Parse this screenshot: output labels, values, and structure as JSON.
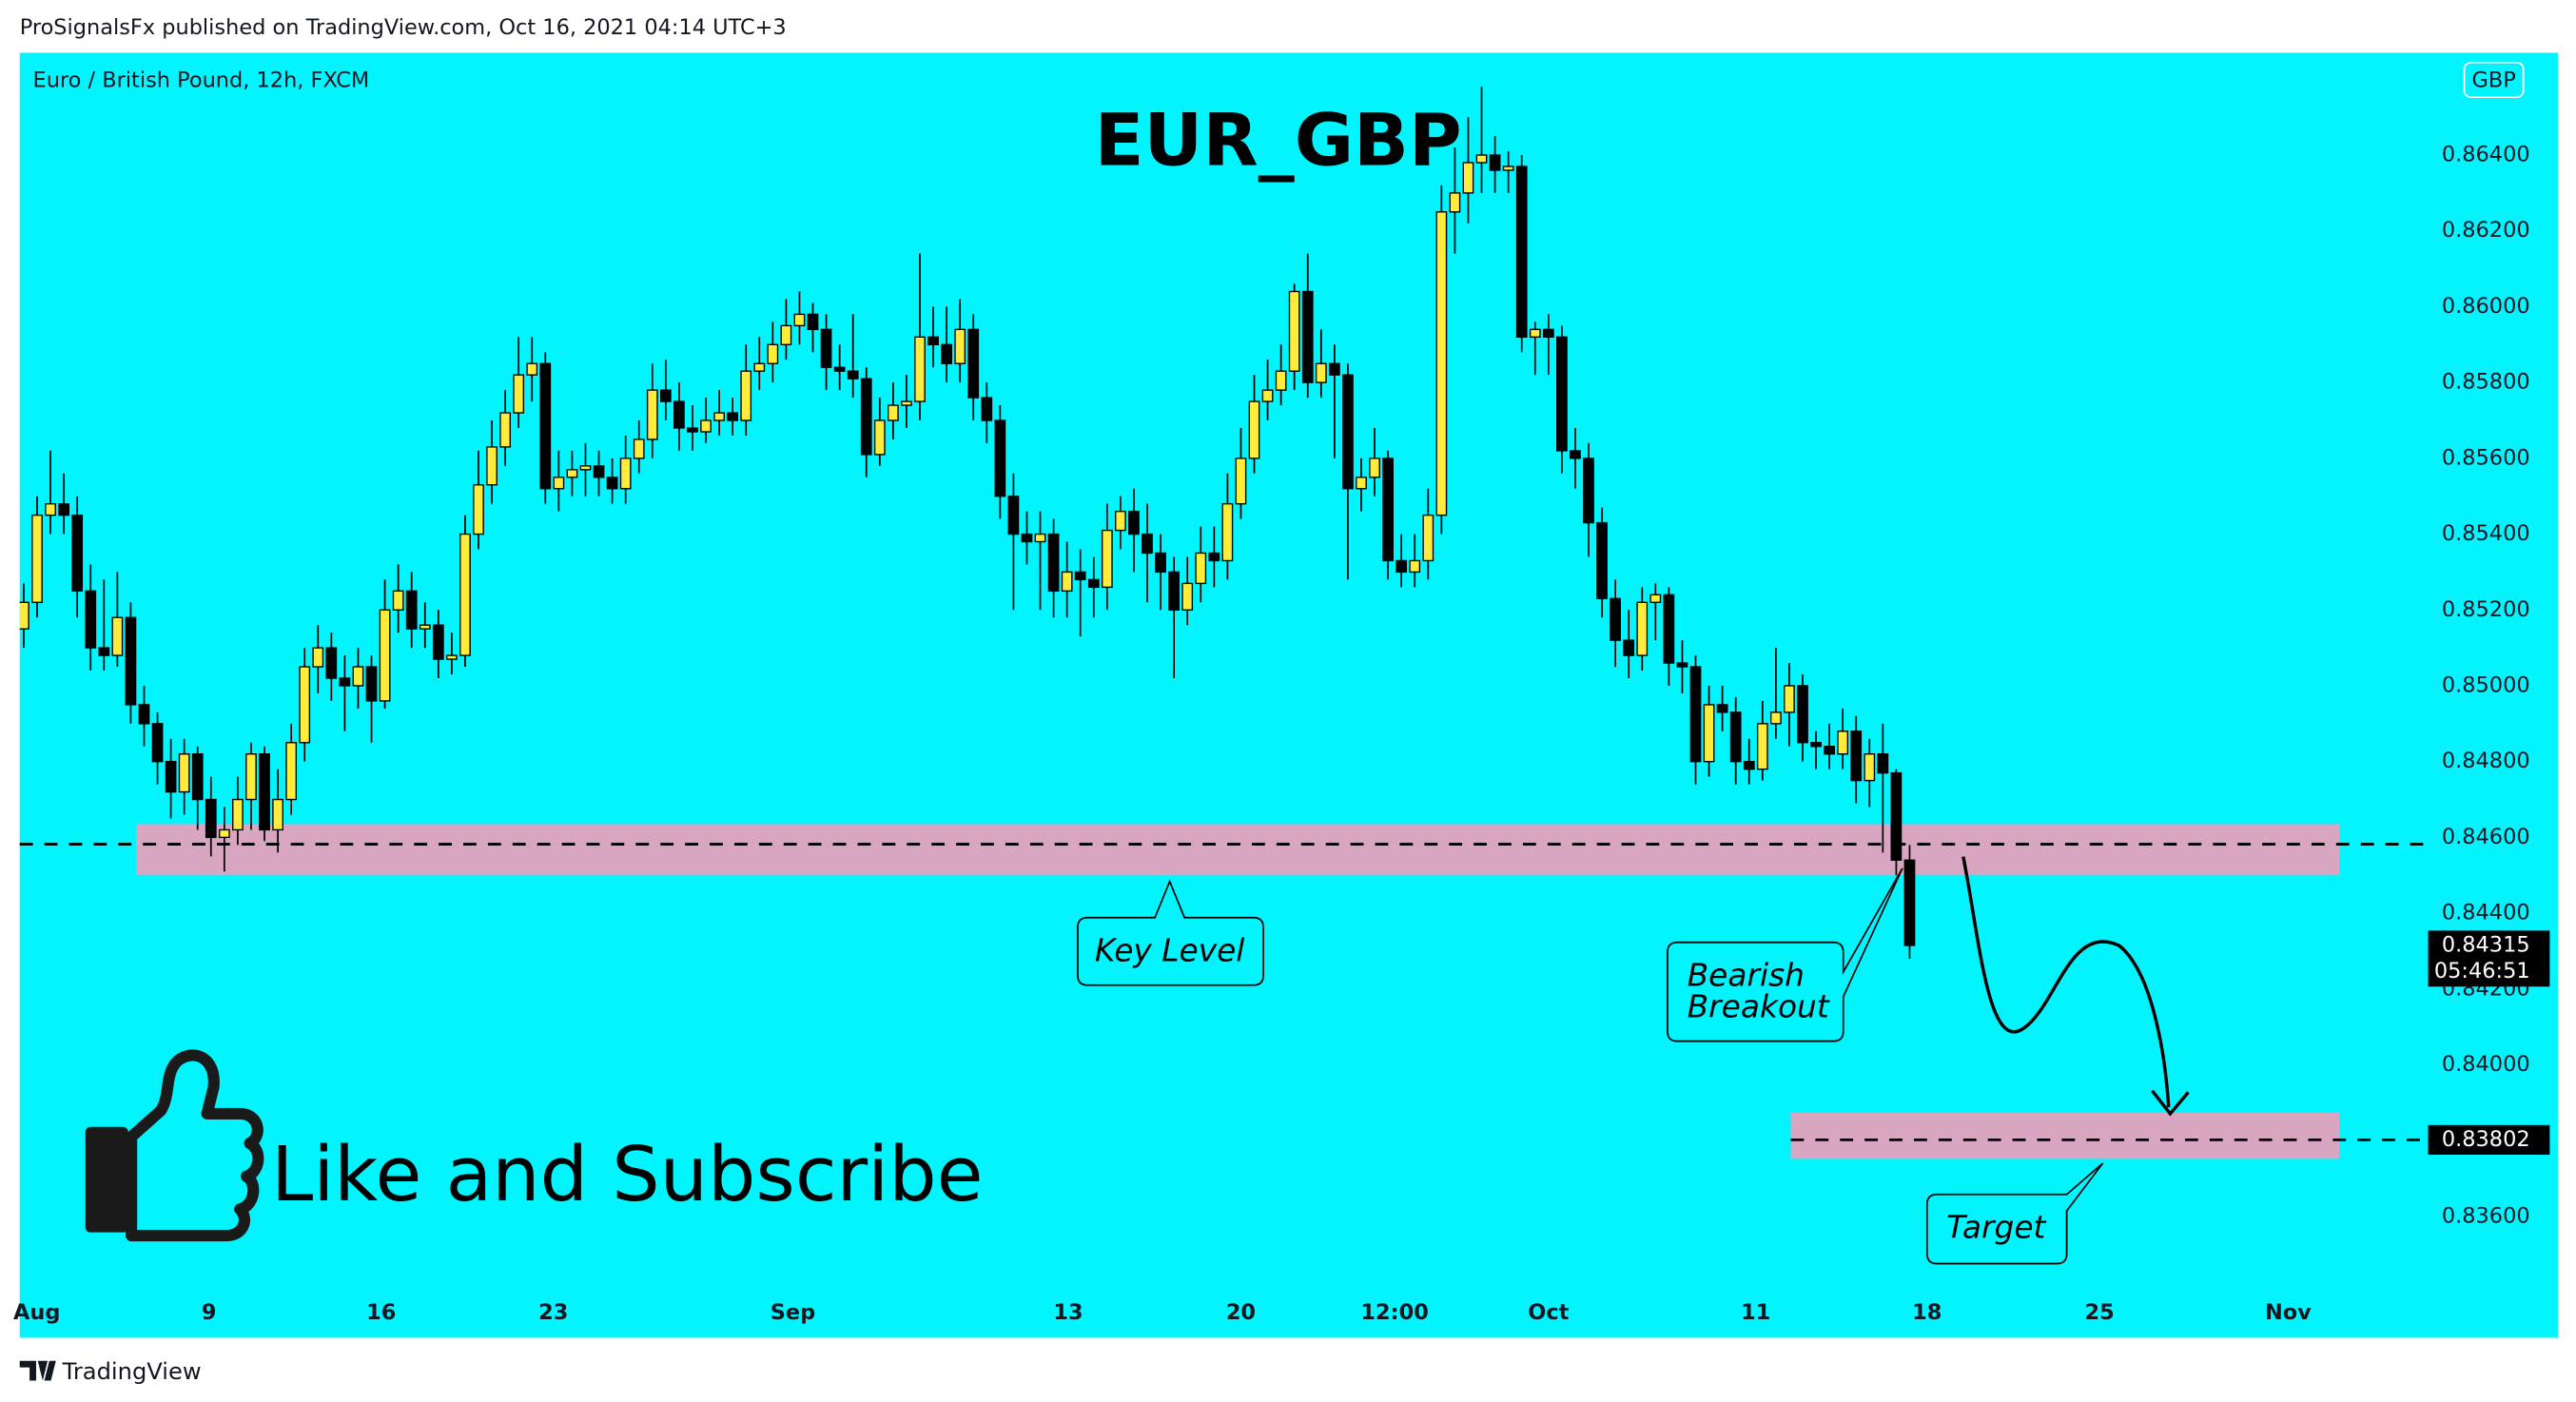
{
  "header": {
    "published": "ProSignalsFx published on TradingView.com, Oct 16, 2021 04:14 UTC+3"
  },
  "footer": {
    "brand": "TradingView"
  },
  "chart_data": {
    "type": "candlestick",
    "title": "EUR_GBP",
    "subtitle": "Euro / British Pound, 12h, FXCM",
    "currency": "GBP",
    "call_to_action": "Like and Subscribe",
    "annotations": {
      "key_level": "Key Level",
      "breakout": [
        "Bearish",
        "Breakout"
      ],
      "target": "Target"
    },
    "up_color": "#ffeb3b",
    "down_color": "#000000",
    "background": "#00f5ff",
    "zone_color": "#d8a6c0",
    "ylim": [
      0.8328,
      0.8667
    ],
    "yticks": [
      {
        "value": 0.836,
        "label": "0.83600"
      },
      {
        "value": 0.838,
        "label": "0.83800"
      },
      {
        "value": 0.84,
        "label": "0.84000"
      },
      {
        "value": 0.842,
        "label": "0.84200"
      },
      {
        "value": 0.844,
        "label": "0.84400"
      },
      {
        "value": 0.846,
        "label": "0.84600"
      },
      {
        "value": 0.848,
        "label": "0.84800"
      },
      {
        "value": 0.85,
        "label": "0.85000"
      },
      {
        "value": 0.852,
        "label": "0.85200"
      },
      {
        "value": 0.854,
        "label": "0.85400"
      },
      {
        "value": 0.856,
        "label": "0.85600"
      },
      {
        "value": 0.858,
        "label": "0.85800"
      },
      {
        "value": 0.86,
        "label": "0.86000"
      },
      {
        "value": 0.862,
        "label": "0.86200"
      },
      {
        "value": 0.864,
        "label": "0.86400"
      }
    ],
    "xlim": [
      -0.3,
      179.4
    ],
    "xticks": [
      {
        "value": 0.98,
        "label": "Aug"
      },
      {
        "value": 13.85,
        "label": "9"
      },
      {
        "value": 26.73,
        "label": "16"
      },
      {
        "value": 39.6,
        "label": "23"
      },
      {
        "value": 57.5,
        "label": "Sep"
      },
      {
        "value": 78.1,
        "label": "13"
      },
      {
        "value": 91.0,
        "label": "20"
      },
      {
        "value": 102.5,
        "label": "12:00"
      },
      {
        "value": 114.0,
        "label": "Oct"
      },
      {
        "value": 129.5,
        "label": "11"
      },
      {
        "value": 142.3,
        "label": "18"
      },
      {
        "value": 155.2,
        "label": "25"
      },
      {
        "value": 169.3,
        "label": "Nov"
      }
    ],
    "zones": [
      {
        "low": 0.845,
        "high": 0.84635
      },
      {
        "low": 0.83752,
        "high": 0.83874
      }
    ],
    "levels": [
      0.84582,
      0.83802
    ],
    "price_labels": [
      {
        "value": 0.84315,
        "label": "0.84315",
        "sub": "05:46:51"
      },
      {
        "value": 0.83802,
        "label": "0.83802"
      }
    ],
    "ohlc": [
      [
        0.8515,
        0.8527,
        0.851,
        0.8522
      ],
      [
        0.8522,
        0.855,
        0.8518,
        0.8545
      ],
      [
        0.8545,
        0.8562,
        0.854,
        0.8548
      ],
      [
        0.8548,
        0.8556,
        0.854,
        0.8545
      ],
      [
        0.8545,
        0.855,
        0.8518,
        0.8525
      ],
      [
        0.8525,
        0.8532,
        0.8504,
        0.851
      ],
      [
        0.851,
        0.8528,
        0.8504,
        0.8508
      ],
      [
        0.8508,
        0.853,
        0.8505,
        0.8518
      ],
      [
        0.8518,
        0.8522,
        0.849,
        0.8495
      ],
      [
        0.8495,
        0.85,
        0.8484,
        0.849
      ],
      [
        0.849,
        0.8493,
        0.8474,
        0.848
      ],
      [
        0.848,
        0.8486,
        0.8465,
        0.8472
      ],
      [
        0.8472,
        0.8486,
        0.8466,
        0.8482
      ],
      [
        0.8482,
        0.8484,
        0.8462,
        0.847
      ],
      [
        0.847,
        0.8476,
        0.8455,
        0.846
      ],
      [
        0.846,
        0.8468,
        0.8451,
        0.8462
      ],
      [
        0.8462,
        0.8476,
        0.8458,
        0.847
      ],
      [
        0.847,
        0.8485,
        0.8462,
        0.8482
      ],
      [
        0.8482,
        0.8484,
        0.8459,
        0.8462
      ],
      [
        0.8462,
        0.8478,
        0.8456,
        0.847
      ],
      [
        0.847,
        0.849,
        0.8466,
        0.8485
      ],
      [
        0.8485,
        0.851,
        0.848,
        0.8505
      ],
      [
        0.8505,
        0.8516,
        0.8498,
        0.851
      ],
      [
        0.851,
        0.8514,
        0.8496,
        0.8502
      ],
      [
        0.8502,
        0.8508,
        0.8488,
        0.85
      ],
      [
        0.85,
        0.851,
        0.8494,
        0.8505
      ],
      [
        0.8505,
        0.8508,
        0.8485,
        0.8496
      ],
      [
        0.8496,
        0.8528,
        0.8494,
        0.852
      ],
      [
        0.852,
        0.8532,
        0.8514,
        0.8525
      ],
      [
        0.8525,
        0.853,
        0.851,
        0.8515
      ],
      [
        0.8515,
        0.8522,
        0.851,
        0.8516
      ],
      [
        0.8516,
        0.852,
        0.8502,
        0.8507
      ],
      [
        0.8507,
        0.8514,
        0.8503,
        0.8508
      ],
      [
        0.8508,
        0.8545,
        0.8505,
        0.854
      ],
      [
        0.854,
        0.8562,
        0.8536,
        0.8553
      ],
      [
        0.8553,
        0.857,
        0.8548,
        0.8563
      ],
      [
        0.8563,
        0.8578,
        0.8558,
        0.8572
      ],
      [
        0.8572,
        0.8592,
        0.8568,
        0.8582
      ],
      [
        0.8582,
        0.8592,
        0.8575,
        0.8585
      ],
      [
        0.8585,
        0.8588,
        0.8548,
        0.8552
      ],
      [
        0.8552,
        0.8562,
        0.8546,
        0.8555
      ],
      [
        0.8555,
        0.8562,
        0.855,
        0.8557
      ],
      [
        0.8557,
        0.8564,
        0.855,
        0.8558
      ],
      [
        0.8558,
        0.8562,
        0.855,
        0.8555
      ],
      [
        0.8555,
        0.856,
        0.8548,
        0.8552
      ],
      [
        0.8552,
        0.8566,
        0.8548,
        0.856
      ],
      [
        0.856,
        0.857,
        0.8556,
        0.8565
      ],
      [
        0.8565,
        0.8585,
        0.856,
        0.8578
      ],
      [
        0.8578,
        0.8586,
        0.857,
        0.8575
      ],
      [
        0.8575,
        0.858,
        0.8562,
        0.8568
      ],
      [
        0.8568,
        0.8574,
        0.8562,
        0.8567
      ],
      [
        0.8567,
        0.8576,
        0.8564,
        0.857
      ],
      [
        0.857,
        0.8578,
        0.8566,
        0.8572
      ],
      [
        0.8572,
        0.8576,
        0.8566,
        0.857
      ],
      [
        0.857,
        0.859,
        0.8566,
        0.8583
      ],
      [
        0.8583,
        0.8592,
        0.8578,
        0.8585
      ],
      [
        0.8585,
        0.8596,
        0.858,
        0.859
      ],
      [
        0.859,
        0.8602,
        0.8586,
        0.8595
      ],
      [
        0.8595,
        0.8604,
        0.859,
        0.8598
      ],
      [
        0.8598,
        0.8601,
        0.8588,
        0.8594
      ],
      [
        0.8594,
        0.8598,
        0.8578,
        0.8584
      ],
      [
        0.8584,
        0.859,
        0.8578,
        0.8583
      ],
      [
        0.8583,
        0.8598,
        0.8576,
        0.8581
      ],
      [
        0.8581,
        0.8584,
        0.8555,
        0.8561
      ],
      [
        0.8561,
        0.8576,
        0.8558,
        0.857
      ],
      [
        0.857,
        0.858,
        0.8565,
        0.8574
      ],
      [
        0.8574,
        0.8582,
        0.8568,
        0.8575
      ],
      [
        0.8575,
        0.8614,
        0.857,
        0.8592
      ],
      [
        0.8592,
        0.86,
        0.8584,
        0.859
      ],
      [
        0.859,
        0.86,
        0.858,
        0.8585
      ],
      [
        0.8585,
        0.8602,
        0.858,
        0.8594
      ],
      [
        0.8594,
        0.8598,
        0.857,
        0.8576
      ],
      [
        0.8576,
        0.858,
        0.8564,
        0.857
      ],
      [
        0.857,
        0.8574,
        0.8544,
        0.855
      ],
      [
        0.855,
        0.8556,
        0.852,
        0.854
      ],
      [
        0.854,
        0.8546,
        0.8532,
        0.8538
      ],
      [
        0.8538,
        0.8546,
        0.852,
        0.854
      ],
      [
        0.854,
        0.8544,
        0.8518,
        0.8525
      ],
      [
        0.8525,
        0.8538,
        0.8518,
        0.853
      ],
      [
        0.853,
        0.8536,
        0.8513,
        0.8528
      ],
      [
        0.8528,
        0.8534,
        0.8518,
        0.8526
      ],
      [
        0.8526,
        0.8548,
        0.852,
        0.8541
      ],
      [
        0.8541,
        0.855,
        0.8536,
        0.8546
      ],
      [
        0.8546,
        0.8552,
        0.853,
        0.854
      ],
      [
        0.854,
        0.8548,
        0.8522,
        0.8535
      ],
      [
        0.8535,
        0.854,
        0.852,
        0.853
      ],
      [
        0.853,
        0.8534,
        0.8502,
        0.852
      ],
      [
        0.852,
        0.8534,
        0.8516,
        0.8527
      ],
      [
        0.8527,
        0.8542,
        0.8522,
        0.8535
      ],
      [
        0.8535,
        0.8542,
        0.8526,
        0.8533
      ],
      [
        0.8533,
        0.8556,
        0.8528,
        0.8548
      ],
      [
        0.8548,
        0.8568,
        0.8544,
        0.856
      ],
      [
        0.856,
        0.8582,
        0.8556,
        0.8575
      ],
      [
        0.8575,
        0.8586,
        0.857,
        0.8578
      ],
      [
        0.8578,
        0.859,
        0.8574,
        0.8583
      ],
      [
        0.8583,
        0.8606,
        0.8578,
        0.8604
      ],
      [
        0.8604,
        0.8614,
        0.8576,
        0.858
      ],
      [
        0.858,
        0.8594,
        0.8576,
        0.8585
      ],
      [
        0.8585,
        0.859,
        0.856,
        0.8582
      ],
      [
        0.8582,
        0.8585,
        0.8528,
        0.8552
      ],
      [
        0.8552,
        0.856,
        0.8546,
        0.8555
      ],
      [
        0.8555,
        0.8568,
        0.855,
        0.856
      ],
      [
        0.856,
        0.8562,
        0.8528,
        0.8533
      ],
      [
        0.8533,
        0.854,
        0.8526,
        0.853
      ],
      [
        0.853,
        0.854,
        0.8526,
        0.8533
      ],
      [
        0.8533,
        0.8552,
        0.8528,
        0.8545
      ],
      [
        0.8545,
        0.8632,
        0.854,
        0.8625
      ],
      [
        0.8625,
        0.8642,
        0.8614,
        0.863
      ],
      [
        0.863,
        0.865,
        0.8622,
        0.8638
      ],
      [
        0.8638,
        0.8658,
        0.863,
        0.864
      ],
      [
        0.864,
        0.8645,
        0.863,
        0.8636
      ],
      [
        0.8636,
        0.8641,
        0.863,
        0.8637
      ],
      [
        0.8637,
        0.864,
        0.8588,
        0.8592
      ],
      [
        0.8592,
        0.8596,
        0.8582,
        0.8594
      ],
      [
        0.8594,
        0.8598,
        0.8582,
        0.8592
      ],
      [
        0.8592,
        0.8595,
        0.8556,
        0.8562
      ],
      [
        0.8562,
        0.8568,
        0.8552,
        0.856
      ],
      [
        0.856,
        0.8564,
        0.8534,
        0.8543
      ],
      [
        0.8543,
        0.8547,
        0.8518,
        0.8523
      ],
      [
        0.8523,
        0.8528,
        0.8505,
        0.8512
      ],
      [
        0.8512,
        0.852,
        0.8502,
        0.8508
      ],
      [
        0.8508,
        0.8526,
        0.8504,
        0.8522
      ],
      [
        0.8522,
        0.8527,
        0.8512,
        0.8524
      ],
      [
        0.8524,
        0.8526,
        0.85,
        0.8506
      ],
      [
        0.8506,
        0.8512,
        0.8498,
        0.8505
      ],
      [
        0.8505,
        0.8508,
        0.8474,
        0.848
      ],
      [
        0.848,
        0.85,
        0.8476,
        0.8495
      ],
      [
        0.8495,
        0.85,
        0.8488,
        0.8493
      ],
      [
        0.8493,
        0.8497,
        0.8474,
        0.848
      ],
      [
        0.848,
        0.8486,
        0.8474,
        0.8478
      ],
      [
        0.8478,
        0.8496,
        0.8475,
        0.849
      ],
      [
        0.849,
        0.851,
        0.8486,
        0.8493
      ],
      [
        0.8493,
        0.8506,
        0.8484,
        0.85
      ],
      [
        0.85,
        0.8503,
        0.848,
        0.8485
      ],
      [
        0.8485,
        0.8488,
        0.8478,
        0.8484
      ],
      [
        0.8484,
        0.849,
        0.8478,
        0.8482
      ],
      [
        0.8482,
        0.8494,
        0.8478,
        0.8488
      ],
      [
        0.8488,
        0.8492,
        0.8469,
        0.8475
      ],
      [
        0.8475,
        0.8486,
        0.8468,
        0.8482
      ],
      [
        0.8482,
        0.849,
        0.8456,
        0.8477
      ],
      [
        0.8477,
        0.8478,
        0.845,
        0.8454
      ],
      [
        0.8454,
        0.8458,
        0.8428,
        0.84315
      ]
    ]
  }
}
